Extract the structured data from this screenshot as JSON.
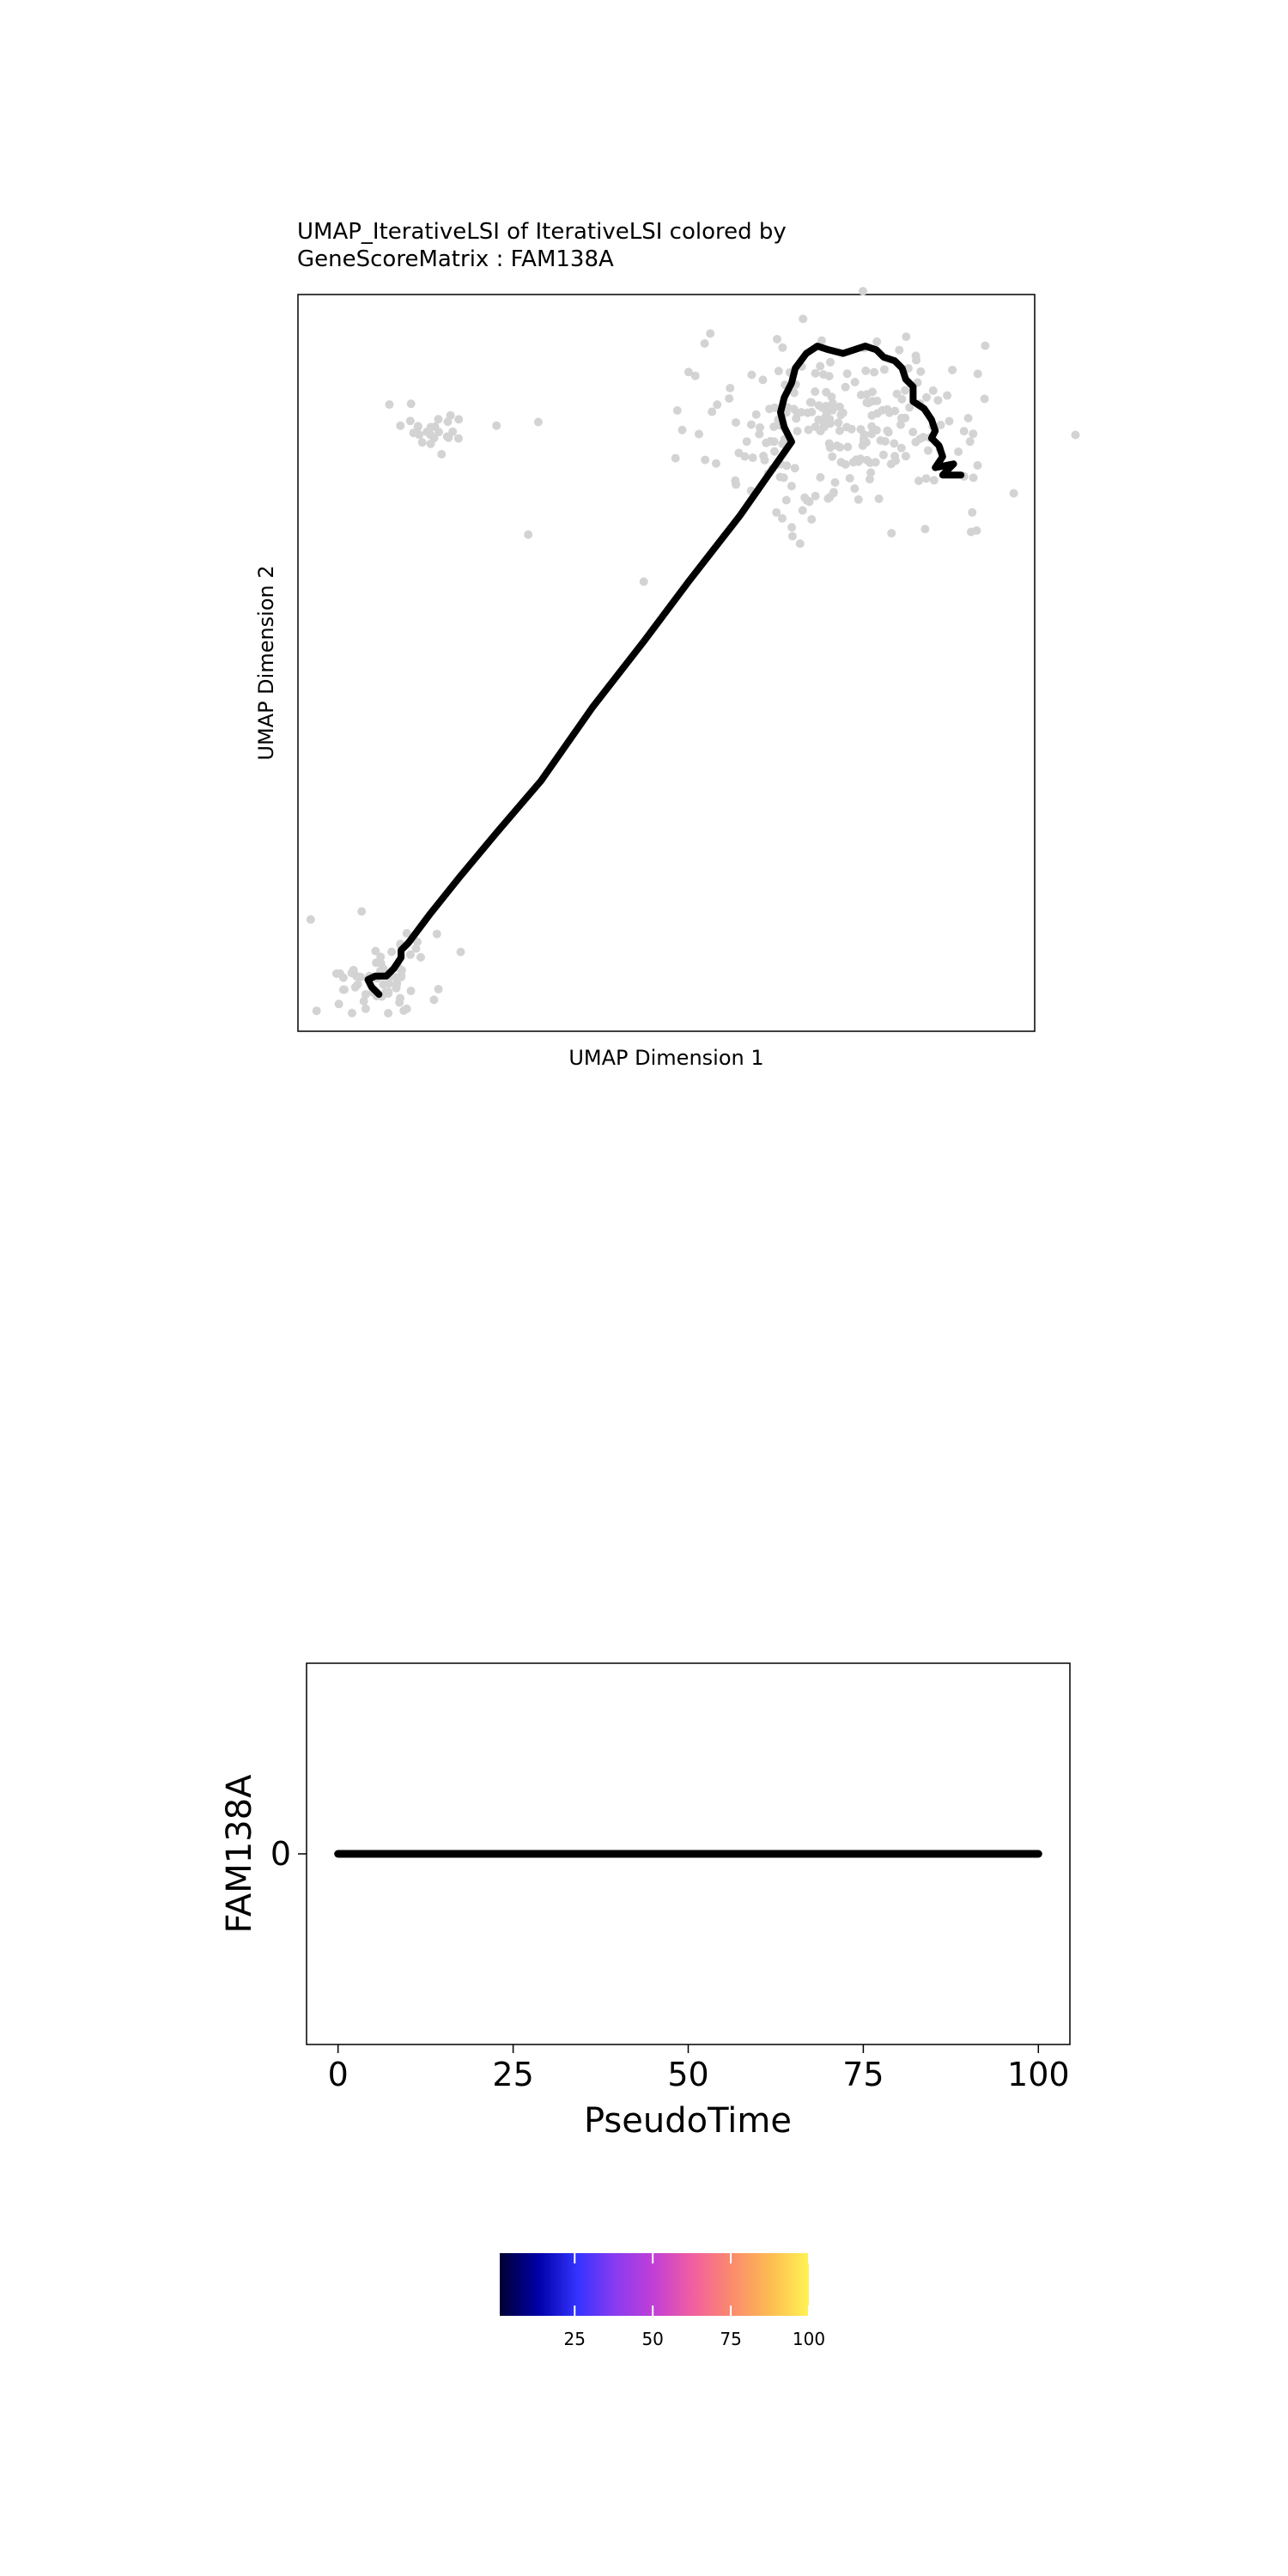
{
  "chart_data": [
    {
      "type": "scatter",
      "title": "UMAP_IterativeLSI of IterativeLSI colored by",
      "subtitle": "GeneScoreMatrix : FAM138A",
      "xlabel": "UMAP Dimension 1",
      "ylabel": "UMAP Dimension 2",
      "xlim": [
        0,
        100
      ],
      "ylim": [
        0,
        100
      ],
      "point_color": "#d3d3d3",
      "trajectory_color": "#000000",
      "clusters": [
        {
          "center": [
            19,
            82
          ],
          "spread": [
            3.5,
            1.8
          ],
          "count": 28
        },
        {
          "center": [
            11,
            7
          ],
          "spread": [
            4.5,
            2.8
          ],
          "count": 65
        },
        {
          "center": [
            74,
            82
          ],
          "spread": [
            10,
            6
          ],
          "count": 240
        }
      ],
      "trajectory": [
        [
          11,
          5
        ],
        [
          10,
          6
        ],
        [
          9.5,
          7
        ],
        [
          10.5,
          7.5
        ],
        [
          12,
          7.5
        ],
        [
          13,
          8.5
        ],
        [
          14,
          10
        ],
        [
          14,
          11
        ],
        [
          15,
          12
        ],
        [
          18,
          16
        ],
        [
          22,
          21
        ],
        [
          27,
          27
        ],
        [
          33,
          34
        ],
        [
          40,
          44
        ],
        [
          47,
          53
        ],
        [
          53,
          61
        ],
        [
          60,
          70
        ],
        [
          67,
          80
        ],
        [
          66,
          82
        ],
        [
          65.5,
          84
        ],
        [
          66,
          86
        ],
        [
          67,
          88
        ],
        [
          67.5,
          90
        ],
        [
          69,
          92
        ],
        [
          70.5,
          93
        ],
        [
          72,
          92.5
        ],
        [
          74,
          92
        ],
        [
          75.5,
          92.5
        ],
        [
          77,
          93
        ],
        [
          78.5,
          92.5
        ],
        [
          79.5,
          91.5
        ],
        [
          81,
          91
        ],
        [
          82,
          90
        ],
        [
          82.5,
          88.5
        ],
        [
          83.5,
          87.5
        ],
        [
          83.5,
          85.5
        ],
        [
          85,
          84.5
        ],
        [
          86,
          83
        ],
        [
          86.5,
          81.5
        ],
        [
          86,
          80.5
        ],
        [
          87,
          79.5
        ],
        [
          87.5,
          78
        ],
        [
          86.5,
          76.5
        ],
        [
          89,
          77
        ],
        [
          87.5,
          75.5
        ],
        [
          90,
          75.5
        ]
      ]
    },
    {
      "type": "line",
      "xlabel": "PseudoTime",
      "ylabel": "FAM138A",
      "xlim": [
        -4.5,
        104.5
      ],
      "ylim": [
        -1,
        1
      ],
      "x_ticks": [
        0,
        25,
        50,
        75,
        100
      ],
      "y_ticks": [
        0
      ],
      "series": [
        {
          "color": "#000000",
          "x": [
            0,
            25,
            50,
            75,
            100
          ],
          "values": [
            0,
            0,
            0,
            0,
            0
          ]
        }
      ]
    },
    {
      "type": "colorbar",
      "range": [
        1,
        100
      ],
      "ticks": [
        25,
        50,
        75,
        100
      ],
      "colors": [
        "#000033",
        "#0000a8",
        "#3333ff",
        "#8a3cf0",
        "#c33fd6",
        "#f15fa0",
        "#fb8a6d",
        "#fdbb52",
        "#fff353"
      ]
    }
  ]
}
